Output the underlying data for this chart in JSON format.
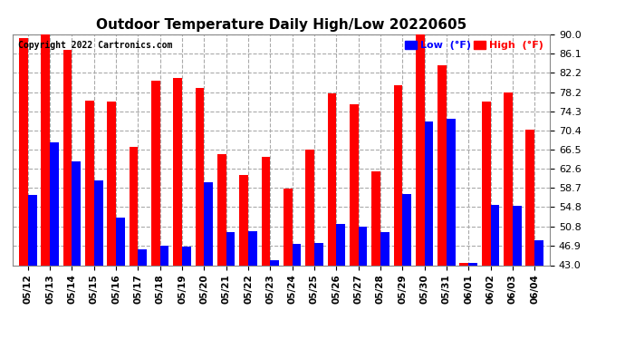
{
  "title": "Outdoor Temperature Daily High/Low 20220605",
  "copyright": "Copyright 2022 Cartronics.com",
  "legend_low": "Low  (°F)",
  "legend_high": "High  (°F)",
  "low_color": "blue",
  "high_color": "red",
  "background_color": "#ffffff",
  "grid_color": "#aaaaaa",
  "ylim": [
    43.0,
    90.0
  ],
  "yticks": [
    43.0,
    46.9,
    50.8,
    54.8,
    58.7,
    62.6,
    66.5,
    70.4,
    74.3,
    78.2,
    82.2,
    86.1,
    90.0
  ],
  "categories": [
    "05/12",
    "05/13",
    "05/14",
    "05/15",
    "05/16",
    "05/17",
    "05/18",
    "05/19",
    "05/20",
    "05/21",
    "05/22",
    "05/23",
    "05/24",
    "05/25",
    "05/26",
    "05/27",
    "05/28",
    "05/29",
    "05/30",
    "05/31",
    "06/01",
    "06/02",
    "06/03",
    "06/04"
  ],
  "high_values": [
    89.1,
    91.2,
    86.8,
    76.4,
    76.3,
    67.0,
    80.6,
    81.0,
    79.0,
    65.5,
    61.3,
    65.0,
    58.5,
    66.5,
    78.0,
    75.8,
    62.0,
    79.5,
    90.2,
    83.7,
    43.5,
    76.3,
    78.2,
    70.6
  ],
  "low_values": [
    57.3,
    68.0,
    64.1,
    60.3,
    52.7,
    46.2,
    46.9,
    46.8,
    59.8,
    49.8,
    50.0,
    44.1,
    47.3,
    47.5,
    51.4,
    50.8,
    49.8,
    57.5,
    72.3,
    72.7,
    43.5,
    55.2,
    55.0,
    48.0
  ]
}
